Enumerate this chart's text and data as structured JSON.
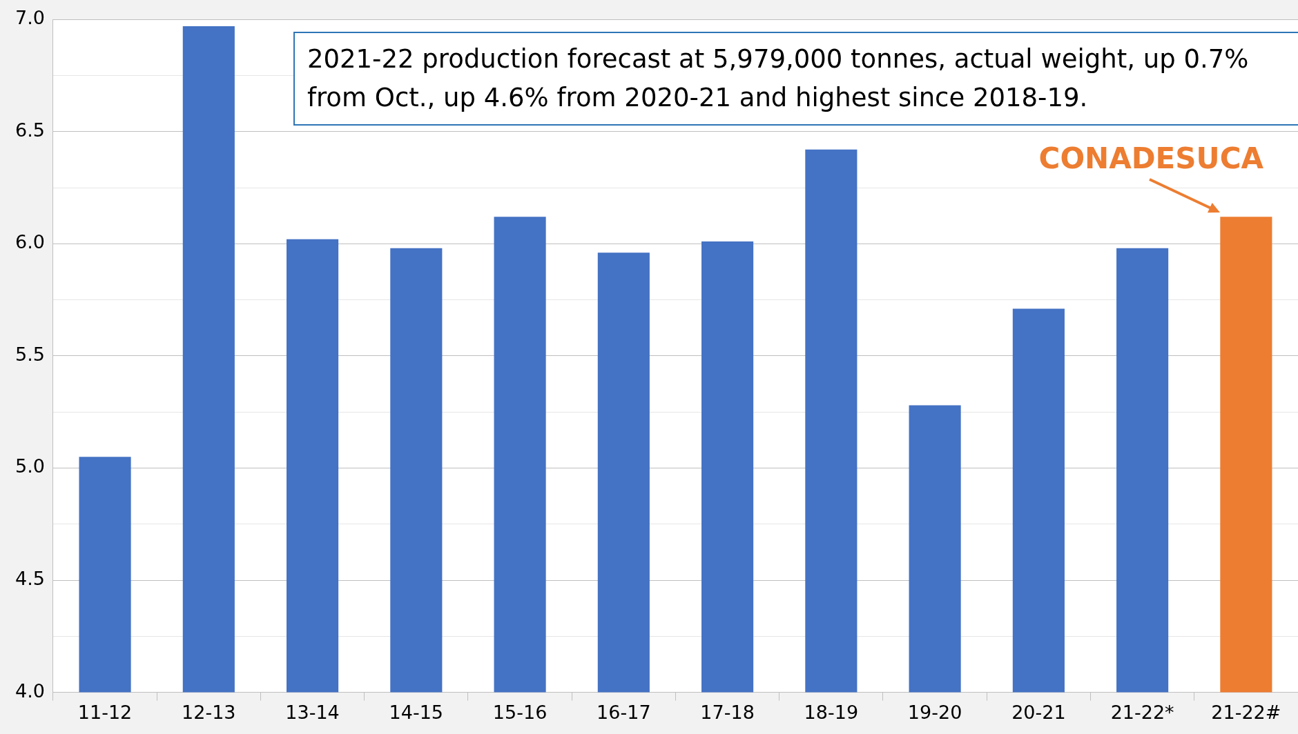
{
  "chart_data": {
    "type": "bar",
    "categories": [
      "11-12",
      "12-13",
      "13-14",
      "14-15",
      "15-16",
      "16-17",
      "17-18",
      "18-19",
      "19-20",
      "20-21",
      "21-22*",
      "21-22#"
    ],
    "values": [
      5.05,
      6.97,
      6.02,
      5.98,
      6.12,
      5.96,
      6.01,
      6.42,
      5.28,
      5.71,
      5.98,
      6.12
    ],
    "colors": [
      "#4472c4",
      "#4472c4",
      "#4472c4",
      "#4472c4",
      "#4472c4",
      "#4472c4",
      "#4472c4",
      "#4472c4",
      "#4472c4",
      "#4472c4",
      "#4472c4",
      "#ed7d31"
    ],
    "ylim": [
      4.0,
      7.0
    ],
    "yticks": [
      {
        "value": 4.0,
        "label": "4.0"
      },
      {
        "value": 4.25,
        "label": null
      },
      {
        "value": 4.5,
        "label": "4.5"
      },
      {
        "value": 4.75,
        "label": null
      },
      {
        "value": 5.0,
        "label": "5.0"
      },
      {
        "value": 5.25,
        "label": null
      },
      {
        "value": 5.5,
        "label": "5.5"
      },
      {
        "value": 5.75,
        "label": null
      },
      {
        "value": 6.0,
        "label": "6.0"
      },
      {
        "value": 6.25,
        "label": null
      },
      {
        "value": 6.5,
        "label": "6.5"
      },
      {
        "value": 6.75,
        "label": null
      },
      {
        "value": 7.0,
        "label": "7.0"
      }
    ],
    "grid": "y",
    "legend": false,
    "annotations": [
      "2021-22 production forecast at 5,979,000 tonnes, actual weight, up 0.7% from Oct., up 4.6% from 2020-21 and highest since 2018-19.",
      {
        "text": "CONADESUCA",
        "x": "21-22#",
        "y": 6.12
      }
    ]
  }
}
